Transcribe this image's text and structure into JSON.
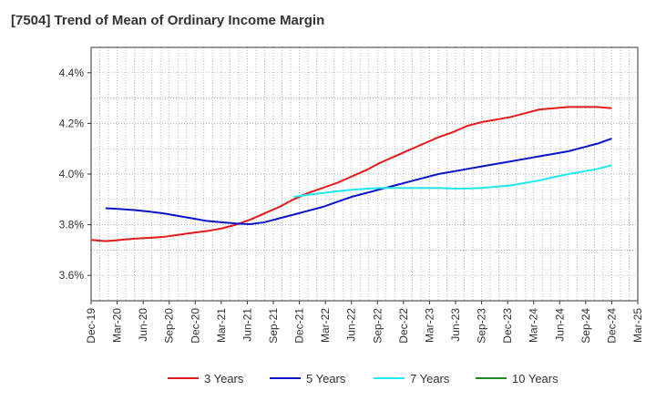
{
  "title": "[7504]  Trend of Mean of Ordinary Income Margin",
  "chart_data": {
    "type": "line",
    "title": "[7504]  Trend of Mean of Ordinary Income Margin",
    "xlabel": "",
    "ylabel": "",
    "x_tick_labels": [
      "Dec-19",
      "Mar-20",
      "Jun-20",
      "Sep-20",
      "Dec-20",
      "Mar-21",
      "Jun-21",
      "Sep-21",
      "Dec-21",
      "Mar-22",
      "Jun-22",
      "Sep-22",
      "Dec-22",
      "Mar-23",
      "Jun-23",
      "Sep-23",
      "Dec-23",
      "Mar-24",
      "Jun-24",
      "Sep-24",
      "Dec-24",
      "Mar-25"
    ],
    "y_tick_labels": [
      "3.6%",
      "3.8%",
      "4.0%",
      "4.2%",
      "4.4%"
    ],
    "y_ticks": [
      3.6,
      3.8,
      4.0,
      4.2,
      4.4
    ],
    "ylim": [
      3.5,
      4.5
    ],
    "grid": true,
    "legend_position": "bottom",
    "series": [
      {
        "name": "3 Years",
        "color": "#e31a1c",
        "values": [
          3.74,
          3.735,
          3.74,
          3.745,
          3.748,
          3.752,
          3.76,
          3.768,
          3.775,
          3.785,
          3.8,
          3.82,
          3.845,
          3.87,
          3.9,
          3.925,
          3.945,
          3.965,
          3.99,
          4.015,
          4.045,
          4.07,
          4.095,
          4.12,
          4.145,
          4.165,
          4.19,
          4.205,
          4.215,
          4.225,
          4.24,
          4.255,
          4.26,
          4.265,
          4.265,
          4.265,
          4.26
        ]
      },
      {
        "name": "5 Years",
        "color": "#0a14c8",
        "values": [
          null,
          3.865,
          3.862,
          3.858,
          3.852,
          3.845,
          3.835,
          3.825,
          3.815,
          3.81,
          3.805,
          3.802,
          3.81,
          3.825,
          3.84,
          3.855,
          3.87,
          3.89,
          3.91,
          3.925,
          3.94,
          3.955,
          3.97,
          3.985,
          4.0,
          4.01,
          4.02,
          4.03,
          4.04,
          4.05,
          4.06,
          4.07,
          4.08,
          4.09,
          4.105,
          4.12,
          4.14
        ]
      },
      {
        "name": "7 Years",
        "color": "#20e8f0",
        "values": [
          null,
          null,
          null,
          null,
          null,
          null,
          null,
          null,
          null,
          null,
          null,
          null,
          null,
          null,
          3.91,
          3.918,
          3.925,
          3.932,
          3.938,
          3.942,
          3.945,
          3.945,
          3.945,
          3.945,
          3.945,
          3.943,
          3.943,
          3.945,
          3.95,
          3.955,
          3.965,
          3.975,
          3.988,
          4.0,
          4.01,
          4.02,
          4.035
        ]
      },
      {
        "name": "10 Years",
        "color": "#1f8a1f",
        "values": []
      }
    ]
  }
}
